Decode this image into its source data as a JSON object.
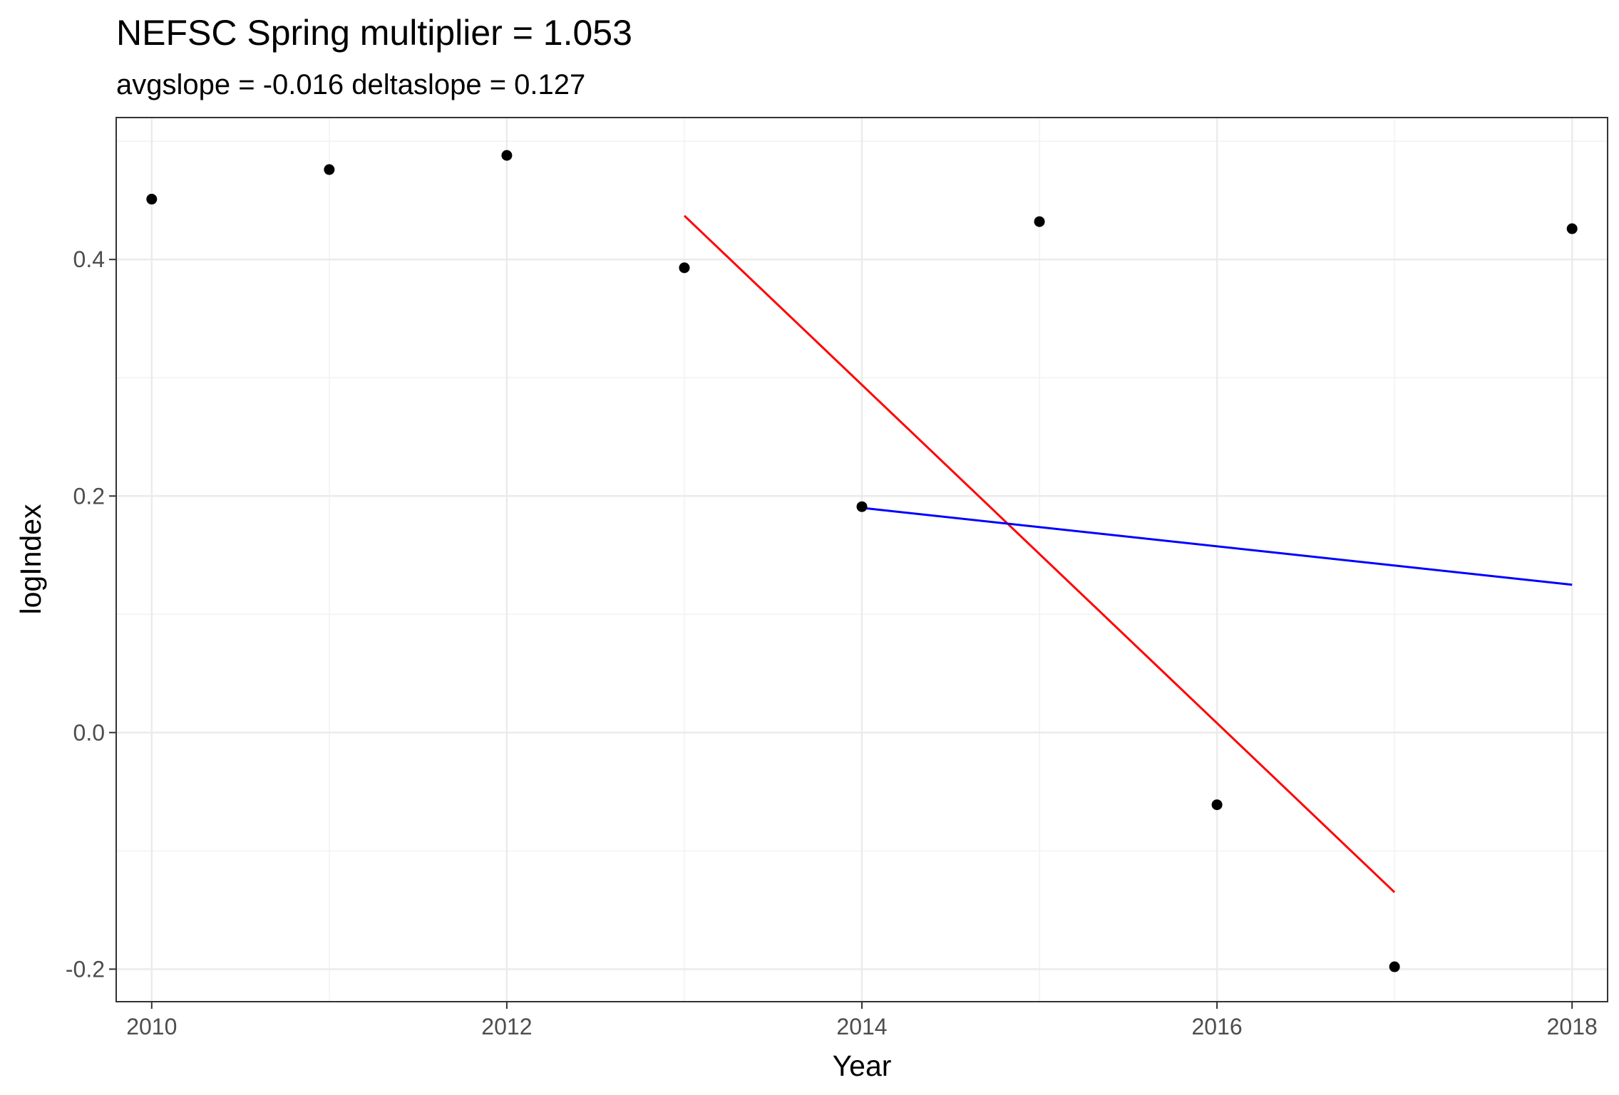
{
  "chart_data": {
    "type": "scatter",
    "title": "NEFSC Spring multiplier = 1.053",
    "subtitle": "avgslope = -0.016  deltaslope = 0.127",
    "xlabel": "Year",
    "ylabel": "logIndex",
    "xlim": [
      2009.8,
      2018.2
    ],
    "ylim": [
      -0.2275,
      0.52
    ],
    "x_ticks": [
      2010,
      2012,
      2014,
      2016,
      2018
    ],
    "x_tick_labels": [
      "2010",
      "2012",
      "2014",
      "2016",
      "2018"
    ],
    "y_ticks": [
      -0.2,
      0.0,
      0.2,
      0.4
    ],
    "y_tick_labels": [
      "-0.2",
      "0.0",
      "0.2",
      "0.4"
    ],
    "grid": true,
    "series": [
      {
        "type": "scatter",
        "color": "#000000",
        "x": [
          2010,
          2011,
          2012,
          2013,
          2014,
          2015,
          2016,
          2017,
          2018
        ],
        "y": [
          0.451,
          0.476,
          0.488,
          0.393,
          0.191,
          0.432,
          -0.061,
          -0.198,
          0.426
        ]
      },
      {
        "type": "line",
        "color": "#ff0000",
        "x": [
          2013,
          2017
        ],
        "y": [
          0.437,
          -0.135
        ]
      },
      {
        "type": "line",
        "color": "#0000ff",
        "x": [
          2014,
          2018
        ],
        "y": [
          0.19,
          0.125
        ]
      }
    ]
  }
}
